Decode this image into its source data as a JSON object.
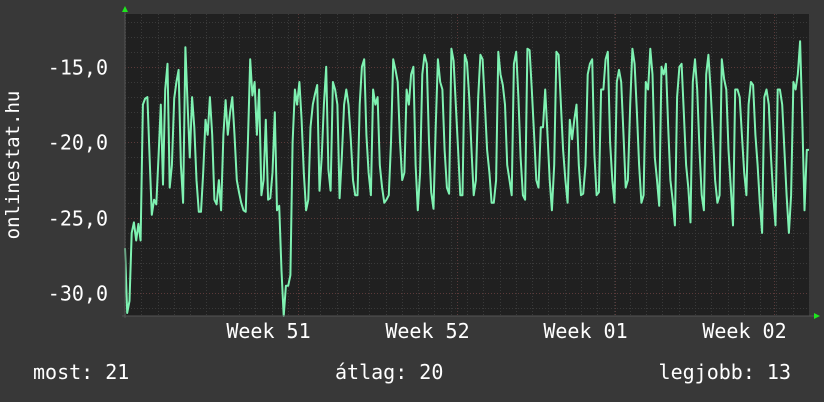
{
  "colors": {
    "background": "#383838",
    "plot_background": "#202020",
    "grid": "#4a4a4a",
    "line": "#7ff2b2",
    "text": "#ffffff",
    "axis_arrow": "#1ee61e"
  },
  "stats": {
    "now_text": "most: 21",
    "avg_text": "átlag: 20",
    "max_text": "legjobb: 13"
  },
  "chart_data": {
    "type": "line",
    "ylabel": "onlinestat.hu",
    "ylim": [
      -31.5,
      -11.5
    ],
    "y_ticks": [
      -15,
      -20,
      -25,
      -30
    ],
    "y_tick_labels": [
      "-15,0",
      "-20,0",
      "-25,0",
      "-30,0"
    ],
    "x_range": [
      0,
      100
    ],
    "x_ticks": [
      25.3,
      48.5,
      71.7,
      94.9
    ],
    "x_tick_labels": [
      "Week 51",
      "Week 52",
      "Week 01",
      "Week 02"
    ],
    "grid": true,
    "series": [
      {
        "values": [
          -27,
          -31.3,
          -30.5,
          -26,
          -25.3,
          -26.5,
          -25.4,
          -26.5,
          -17.5,
          -17.1,
          -17,
          -21,
          -24.8,
          -23.8,
          -24.1,
          -21,
          -17.5,
          -22.8,
          -16.5,
          -14.8,
          -23,
          -21.5,
          -17.1,
          -16,
          -15.2,
          -21.5,
          -24,
          -13.7,
          -17.5,
          -21,
          -17,
          -19,
          -22.5,
          -24.6,
          -24.6,
          -22,
          -18.5,
          -19.5,
          -17,
          -19.5,
          -23.8,
          -24.1,
          -22.5,
          -24.5,
          -19.5,
          -17.2,
          -19.5,
          -18,
          -17,
          -19.5,
          -22.5,
          -23.3,
          -24,
          -24.5,
          -24.6,
          -20,
          -14.5,
          -16.9,
          -16,
          -19.5,
          -16.5,
          -23.5,
          -22.5,
          -18.5,
          -23.8,
          -23.7,
          -22,
          -18,
          -24.5,
          -24.2,
          -28.5,
          -31.5,
          -29.5,
          -29.5,
          -28.8,
          -20,
          -16.5,
          -17.5,
          -16,
          -18.5,
          -22,
          -24.5,
          -23.8,
          -19,
          -17.5,
          -16.8,
          -16.2,
          -23.2,
          -21,
          -17.5,
          -15,
          -21.8,
          -23.2,
          -16,
          -16.5,
          -17.5,
          -23.7,
          -21,
          -17.5,
          -16.5,
          -17.5,
          -19.8,
          -22.5,
          -23.5,
          -23.5,
          -17.5,
          -15,
          -14.5,
          -19.5,
          -22,
          -23.5,
          -16.5,
          -17.5,
          -17,
          -21.5,
          -23,
          -24,
          -23.8,
          -23.5,
          -20,
          -14.5,
          -15.2,
          -16,
          -19.8,
          -22.5,
          -22,
          -16.5,
          -17.5,
          -15.5,
          -15,
          -21.5,
          -24.5,
          -22,
          -15.5,
          -14.2,
          -14.8,
          -20,
          -23.3,
          -24.4,
          -19,
          -14.5,
          -16,
          -16.5,
          -20.5,
          -23,
          -23.4,
          -13.8,
          -14.6,
          -17.5,
          -20.5,
          -23.5,
          -23.5,
          -14.2,
          -14.7,
          -17,
          -20.5,
          -23.5,
          -22.5,
          -17,
          -14.2,
          -14.5,
          -17.5,
          -20.5,
          -22,
          -24,
          -24,
          -22.5,
          -14,
          -15.5,
          -16.2,
          -17.5,
          -21.5,
          -22.5,
          -23.5,
          -14.8,
          -14,
          -17,
          -21,
          -23.5,
          -23.8,
          -13.8,
          -13.9,
          -16.5,
          -19.5,
          -22.5,
          -23,
          -19,
          -19,
          -16.5,
          -19.5,
          -22.5,
          -24.5,
          -21.5,
          -14,
          -14.2,
          -17.5,
          -20.5,
          -22.5,
          -24,
          -18.5,
          -19.8,
          -18.5,
          -17.5,
          -21.5,
          -23.5,
          -23.4,
          -21.5,
          -15.5,
          -14.8,
          -14.5,
          -20.8,
          -23.5,
          -23.3,
          -16.5,
          -16.5,
          -14.5,
          -14,
          -20,
          -22.5,
          -24,
          -16,
          -15.2,
          -16,
          -19.5,
          -23,
          -22.5,
          -17.5,
          -13.8,
          -14.8,
          -18,
          -21.5,
          -24,
          -23.5,
          -16,
          -16.5,
          -13.8,
          -15.5,
          -21,
          -22.5,
          -24.2,
          -15,
          -15.5,
          -14.8,
          -19,
          -22.5,
          -23.8,
          -25.5,
          -17,
          -15,
          -14.8,
          -18,
          -21.5,
          -23,
          -25.3,
          -16,
          -14.5,
          -16.5,
          -20.5,
          -23.5,
          -24.5,
          -15.5,
          -14.2,
          -16.5,
          -19.5,
          -22.5,
          -24,
          -23.5,
          -14.5,
          -15.8,
          -16.5,
          -20.5,
          -23,
          -25.5,
          -16.5,
          -16.5,
          -17,
          -19.5,
          -22,
          -23.5,
          -17.5,
          -16,
          -16.2,
          -19.5,
          -21.5,
          -24,
          -26,
          -17,
          -16.5,
          -17.5,
          -21,
          -23.5,
          -25.5,
          -16.5,
          -16.5,
          -17.5,
          -20.5,
          -23.5,
          -26,
          -23.5,
          -16,
          -16.5,
          -15.5,
          -13.3,
          -18.5,
          -24.5,
          -20.5,
          -20.5
        ]
      }
    ]
  }
}
